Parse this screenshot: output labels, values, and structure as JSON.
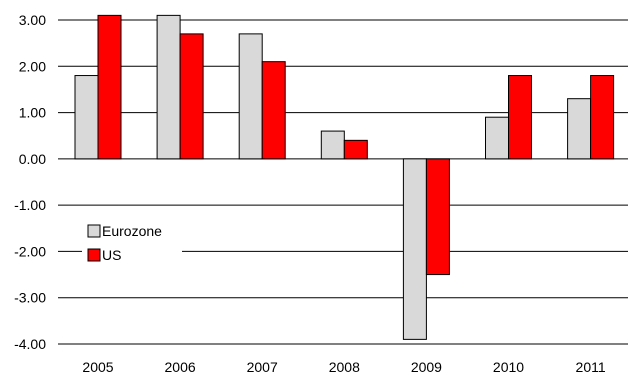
{
  "chart_data": {
    "type": "bar",
    "categories": [
      "2005",
      "2006",
      "2007",
      "2008",
      "2009",
      "2010",
      "2011"
    ],
    "series": [
      {
        "name": "Eurozone",
        "color": "#d9d9d9",
        "values": [
          1.8,
          3.1,
          2.7,
          0.6,
          -3.9,
          0.9,
          1.3
        ]
      },
      {
        "name": "US",
        "color": "#ff0000",
        "values": [
          3.1,
          2.7,
          2.1,
          0.4,
          -2.5,
          1.8,
          1.8
        ]
      }
    ],
    "yticks": [
      "3.00",
      "2.00",
      "1.00",
      "0.00",
      "-1.00",
      "-2.00",
      "-3.00",
      "-4.00"
    ],
    "ylim": [
      -4,
      3
    ],
    "grid": true,
    "legend_position": "left-middle"
  }
}
